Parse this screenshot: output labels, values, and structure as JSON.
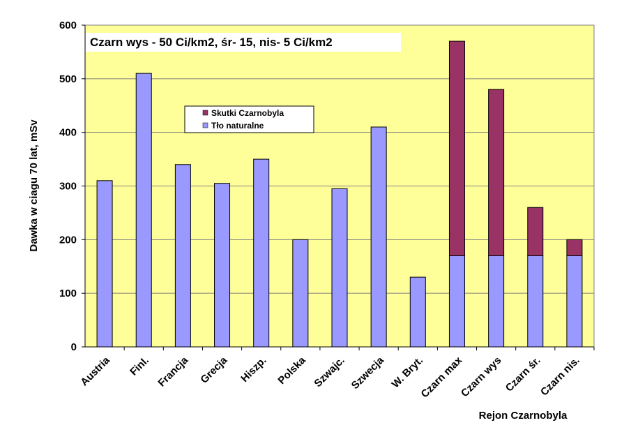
{
  "chart_data": {
    "type": "bar",
    "stacked": true,
    "categories": [
      "Austria",
      "Finl.",
      "Francja",
      "Grecja",
      "Hiszp.",
      "Polska",
      "Szwajc.",
      "Szwecja",
      "W. Bryt.",
      "Czarn max",
      "Czarn wys",
      "Czarn śr.",
      "Czarn nis."
    ],
    "series": [
      {
        "name": "Tło naturalne",
        "color": "#9999ff",
        "values": [
          310,
          510,
          340,
          305,
          350,
          200,
          295,
          410,
          130,
          170,
          170,
          170,
          170
        ]
      },
      {
        "name": "Skutki Czarnobyla",
        "color": "#993366",
        "values": [
          0,
          0,
          0,
          0,
          0,
          0,
          0,
          0,
          0,
          400,
          310,
          90,
          30
        ]
      }
    ],
    "ylabel": "Dawka w ciagu 70 lat,  mSv",
    "xlabel": "Rejon Czarnobyla",
    "annotation": "Czarn  wys - 50 Ci/km2,  śr- 15,  nis- 5 Ci/km2",
    "ylim": [
      0,
      600
    ],
    "yticks": [
      0,
      100,
      200,
      300,
      400,
      500,
      600
    ],
    "grid": true,
    "legend_position": "upper-left",
    "plot_background": "#ffff99"
  }
}
